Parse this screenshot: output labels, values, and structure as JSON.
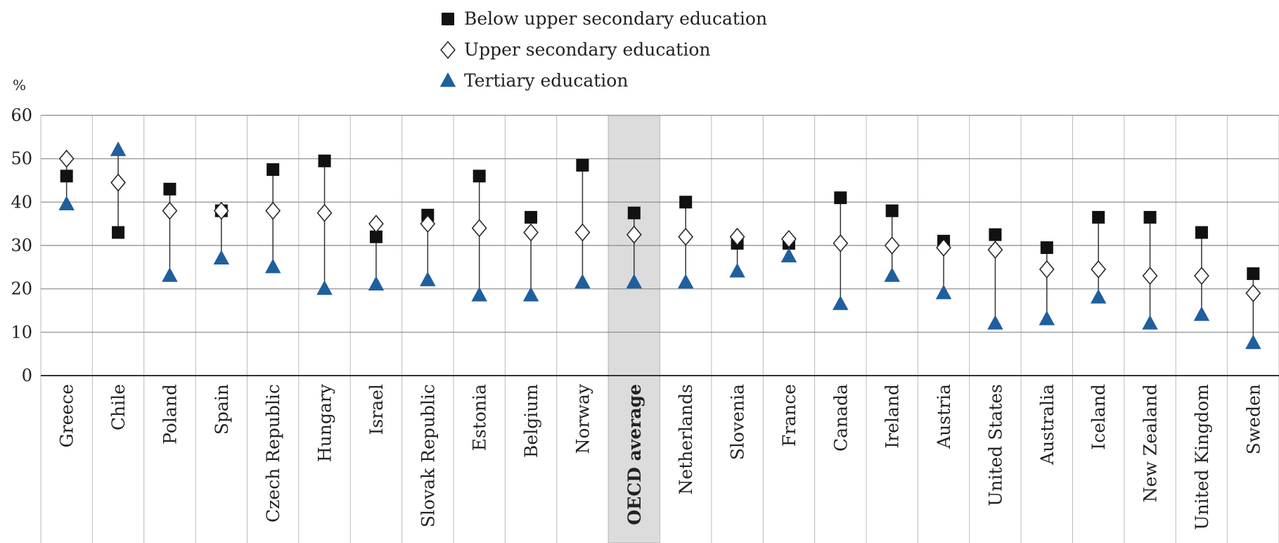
{
  "chart_data": {
    "type": "range-dot",
    "y_unit_label": "%",
    "categories": [
      "Greece",
      "Chile",
      "Poland",
      "Spain",
      "Czech Republic",
      "Hungary",
      "Israel",
      "Slovak Republic",
      "Estonia",
      "Belgium",
      "Norway",
      "OECD average",
      "Netherlands",
      "Slovenia",
      "France",
      "Canada",
      "Ireland",
      "Austria",
      "United States",
      "Australia",
      "Iceland",
      "New Zealand",
      "United Kingdom",
      "Sweden"
    ],
    "highlight_index": 11,
    "series": [
      {
        "name": "Below upper secondary education",
        "marker": "square",
        "color": "#111111",
        "values": [
          46,
          33,
          43,
          38,
          47.5,
          49.5,
          32,
          37,
          46,
          36.5,
          48.5,
          37.5,
          40,
          30.5,
          30.5,
          41,
          38,
          31,
          32.5,
          29.5,
          36.5,
          36.5,
          33,
          23.5
        ]
      },
      {
        "name": "Upper secondary education",
        "marker": "diamond",
        "color": "#ffffff",
        "values": [
          50,
          44.5,
          38,
          38,
          38,
          37.5,
          35,
          35,
          34,
          33,
          33,
          32.5,
          32,
          32,
          31.5,
          30.5,
          30,
          29.5,
          29,
          24.5,
          24.5,
          23,
          23,
          19
        ]
      },
      {
        "name": "Tertiary education",
        "marker": "triangle",
        "color": "#1f5f9e",
        "values": [
          39.5,
          52,
          23,
          27,
          25,
          20,
          21,
          22,
          18.5,
          18.5,
          21.5,
          21.5,
          21.5,
          24,
          27.5,
          16.5,
          23,
          19,
          12,
          13,
          18,
          12,
          14,
          7.5
        ]
      }
    ],
    "ylim": [
      0,
      60
    ],
    "yticks": [
      0,
      10,
      20,
      30,
      40,
      50,
      60
    ],
    "grid": true
  }
}
